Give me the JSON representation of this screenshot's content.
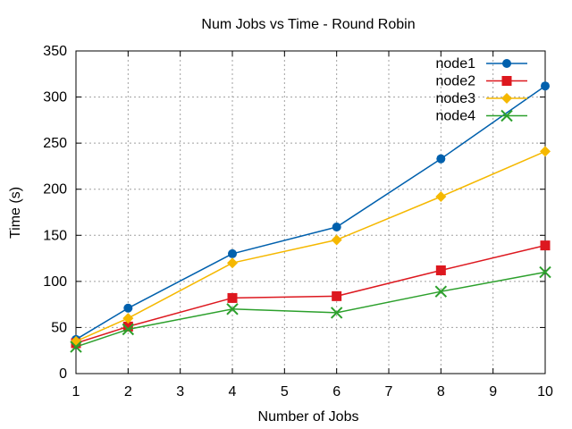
{
  "chart_data": {
    "type": "line",
    "title": "Num Jobs vs Time - Round Robin",
    "xlabel": "Number of Jobs",
    "ylabel": "Time (s)",
    "xlim": [
      1,
      10
    ],
    "ylim": [
      0,
      350
    ],
    "xticks": [
      1,
      2,
      3,
      4,
      5,
      6,
      7,
      8,
      9,
      10
    ],
    "yticks": [
      0,
      50,
      100,
      150,
      200,
      250,
      300,
      350
    ],
    "grid": true,
    "legend_position": "top-right",
    "x": [
      1,
      2,
      4,
      6,
      8,
      10
    ],
    "series": [
      {
        "name": "node1",
        "color": "#0060ad",
        "marker": "circle",
        "values": [
          37,
          71,
          130,
          159,
          233,
          312
        ]
      },
      {
        "name": "node2",
        "color": "#dd181f",
        "marker": "square",
        "values": [
          33,
          51,
          82,
          84,
          112,
          139
        ]
      },
      {
        "name": "node3",
        "color": "#f5b800",
        "marker": "diamond",
        "values": [
          35,
          60,
          120,
          145,
          192,
          241
        ]
      },
      {
        "name": "node4",
        "color": "#2ca02c",
        "marker": "cross",
        "values": [
          29,
          48,
          70,
          66,
          89,
          110
        ]
      }
    ]
  }
}
